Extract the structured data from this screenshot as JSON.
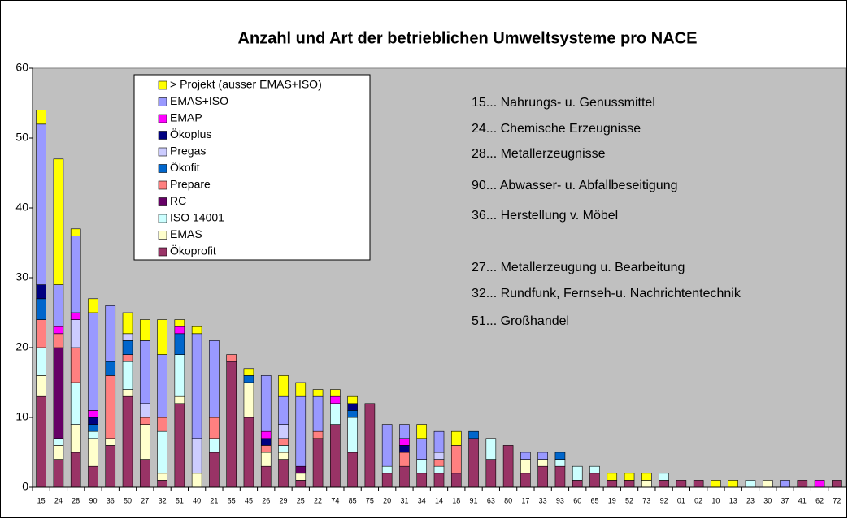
{
  "chart_data": {
    "type": "stacked-bar",
    "title": "Anzahl und Art der betrieblichen Umweltsysteme pro NACE",
    "categories": [
      "15",
      "24",
      "28",
      "90",
      "36",
      "50",
      "27",
      "32",
      "51",
      "40",
      "21",
      "55",
      "45",
      "26",
      "29",
      "25",
      "22",
      "74",
      "85",
      "75",
      "20",
      "31",
      "34",
      "14",
      "18",
      "91",
      "63",
      "80",
      "17",
      "33",
      "93",
      "60",
      "65",
      "19",
      "52",
      "73",
      "92",
      "01",
      "02",
      "10",
      "13",
      "23",
      "30",
      "37",
      "41",
      "62",
      "72"
    ],
    "series": [
      {
        "name": "Ökoprofit",
        "color": "#993366",
        "values": [
          13,
          4,
          5,
          3,
          6,
          13,
          4,
          1,
          12,
          0,
          5,
          18,
          10,
          3,
          4,
          1,
          7,
          9,
          5,
          12,
          2,
          3,
          2,
          2,
          2,
          7,
          4,
          6,
          2,
          3,
          3,
          1,
          2,
          1,
          1,
          0,
          1,
          1,
          1,
          0,
          0,
          0,
          0,
          0,
          1,
          0,
          1
        ]
      },
      {
        "name": "EMAS",
        "color": "#FFFFCC",
        "values": [
          3,
          2,
          4,
          4,
          1,
          1,
          5,
          1,
          1,
          2,
          0,
          0,
          5,
          2,
          1,
          1,
          0,
          0,
          0,
          0,
          0,
          0,
          0,
          0,
          0,
          0,
          0,
          0,
          2,
          1,
          0,
          0,
          0,
          0,
          0,
          1,
          0,
          0,
          0,
          0,
          0,
          0,
          1,
          0,
          0,
          0,
          0
        ]
      },
      {
        "name": "ISO 14001",
        "color": "#CCFFFF",
        "values": [
          4,
          1,
          6,
          1,
          0,
          4,
          0,
          6,
          6,
          0,
          2,
          0,
          0,
          0,
          1,
          0,
          0,
          3,
          5,
          0,
          1,
          0,
          2,
          1,
          0,
          0,
          3,
          0,
          0,
          0,
          1,
          2,
          1,
          0,
          0,
          0,
          1,
          0,
          0,
          0,
          0,
          1,
          0,
          0,
          0,
          0,
          0
        ]
      },
      {
        "name": "RC",
        "color": "#660066",
        "values": [
          0,
          13,
          0,
          0,
          0,
          0,
          0,
          0,
          0,
          0,
          0,
          0,
          0,
          0,
          0,
          1,
          0,
          0,
          0,
          0,
          0,
          0,
          0,
          0,
          0,
          0,
          0,
          0,
          0,
          0,
          0,
          0,
          0,
          0,
          0,
          0,
          0,
          0,
          0,
          0,
          0,
          0,
          0,
          0,
          0,
          0,
          0
        ]
      },
      {
        "name": "Prepare",
        "color": "#FF8080",
        "values": [
          4,
          2,
          5,
          0,
          9,
          1,
          1,
          2,
          0,
          0,
          3,
          1,
          0,
          1,
          1,
          0,
          1,
          0,
          0,
          0,
          0,
          2,
          0,
          1,
          4,
          0,
          0,
          0,
          0,
          0,
          0,
          0,
          0,
          0,
          0,
          0,
          0,
          0,
          0,
          0,
          0,
          0,
          0,
          0,
          0,
          0,
          0
        ]
      },
      {
        "name": "Ökofit",
        "color": "#0066CC",
        "values": [
          3,
          0,
          0,
          1,
          2,
          2,
          0,
          0,
          3,
          0,
          0,
          0,
          1,
          0,
          0,
          0,
          0,
          0,
          1,
          0,
          0,
          0,
          0,
          0,
          0,
          1,
          0,
          0,
          0,
          0,
          1,
          0,
          0,
          0,
          0,
          0,
          0,
          0,
          0,
          0,
          0,
          0,
          0,
          0,
          0,
          0,
          0
        ]
      },
      {
        "name": "Pregas",
        "color": "#CCCCFF",
        "values": [
          0,
          0,
          4,
          0,
          0,
          1,
          2,
          0,
          0,
          5,
          0,
          0,
          0,
          0,
          2,
          0,
          0,
          0,
          0,
          0,
          0,
          0,
          0,
          1,
          0,
          0,
          0,
          0,
          0,
          0,
          0,
          0,
          0,
          0,
          0,
          0,
          0,
          0,
          0,
          0,
          0,
          0,
          0,
          0,
          0,
          0,
          0
        ]
      },
      {
        "name": "Ökoplus",
        "color": "#000080",
        "values": [
          2,
          0,
          0,
          1,
          0,
          0,
          0,
          0,
          0,
          0,
          0,
          0,
          0,
          1,
          0,
          0,
          0,
          0,
          1,
          0,
          0,
          1,
          0,
          0,
          0,
          0,
          0,
          0,
          0,
          0,
          0,
          0,
          0,
          0,
          0,
          0,
          0,
          0,
          0,
          0,
          0,
          0,
          0,
          0,
          0,
          0,
          0
        ]
      },
      {
        "name": "EMAP",
        "color": "#FF00FF",
        "values": [
          0,
          1,
          1,
          1,
          0,
          0,
          0,
          0,
          1,
          0,
          0,
          0,
          0,
          1,
          0,
          0,
          0,
          1,
          0,
          0,
          0,
          1,
          0,
          0,
          0,
          0,
          0,
          0,
          0,
          0,
          0,
          0,
          0,
          0,
          0,
          0,
          0,
          0,
          0,
          0,
          0,
          0,
          0,
          0,
          0,
          1,
          0
        ]
      },
      {
        "name": "EMAS+ISO",
        "color": "#9999FF",
        "values": [
          23,
          6,
          11,
          14,
          8,
          0,
          9,
          9,
          0,
          15,
          11,
          0,
          0,
          8,
          4,
          10,
          5,
          0,
          0,
          0,
          6,
          2,
          3,
          3,
          0,
          0,
          0,
          0,
          1,
          1,
          0,
          0,
          0,
          0,
          0,
          0,
          0,
          0,
          0,
          0,
          0,
          0,
          0,
          1,
          0,
          0,
          0
        ]
      },
      {
        "name": "> Projekt (ausser EMAS+ISO)",
        "color": "#FFFF00",
        "values": [
          2,
          18,
          1,
          2,
          0,
          3,
          3,
          5,
          1,
          1,
          0,
          0,
          1,
          0,
          3,
          2,
          1,
          1,
          1,
          0,
          0,
          0,
          2,
          0,
          2,
          0,
          0,
          0,
          0,
          0,
          0,
          0,
          0,
          1,
          1,
          1,
          0,
          0,
          0,
          1,
          1,
          0,
          0,
          0,
          0,
          0,
          0
        ]
      }
    ],
    "ylim": [
      0,
      60
    ],
    "yticks": [
      0,
      10,
      20,
      30,
      40,
      50,
      60
    ],
    "grid": false,
    "background": "#C0C0C0",
    "annotations": [
      "15... Nahrungs- u. Genussmittel",
      "24... Chemische Erzeugnisse",
      "28... Metallerzeugnisse",
      "90... Abwasser- u. Abfallbeseitigung",
      "36... Herstellung v. Möbel",
      "27... Metallerzeugung u. Bearbeitung",
      "32... Rundfunk, Fernseh-u. Nachrichtentechnik",
      "51... Großhandel"
    ]
  }
}
